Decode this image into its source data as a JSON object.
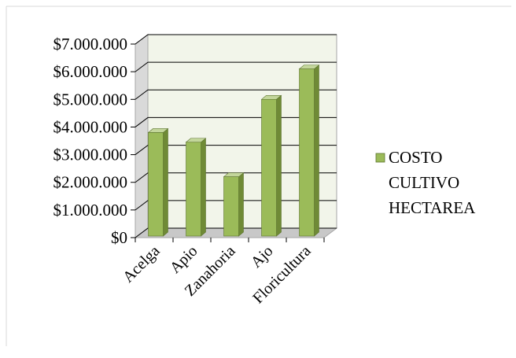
{
  "chart_data": {
    "type": "bar",
    "categories": [
      "Acelga",
      "Apio",
      "Zanahoria",
      "Ajo",
      "Floricultura"
    ],
    "series": [
      {
        "name": "COSTO CULTIVO HECTAREA",
        "values": [
          3800000,
          3450000,
          2200000,
          5000000,
          6100000
        ]
      }
    ],
    "y_ticks": [
      "$0",
      "$1.000.000",
      "$2.000.000",
      "$3.000.000",
      "$4.000.000",
      "$5.000.000",
      "$6.000.000",
      "$7.000.000"
    ],
    "legend_lines": [
      "COSTO",
      "CULTIVO",
      "HECTAREA"
    ],
    "ylim": [
      0,
      7000000
    ],
    "title": "",
    "xlabel": "",
    "ylabel": "",
    "grid": true,
    "style": "3d-clustered-column",
    "legend_position": "right",
    "colors": {
      "bar_front": "#9BBB59",
      "bar_side": "#6F8A36",
      "bar_top": "#C3D69B",
      "back_wall": "#F2F5EA",
      "side_wall": "#D9D9D9",
      "floor": "#C8C8C8",
      "grid": "#000000"
    }
  }
}
